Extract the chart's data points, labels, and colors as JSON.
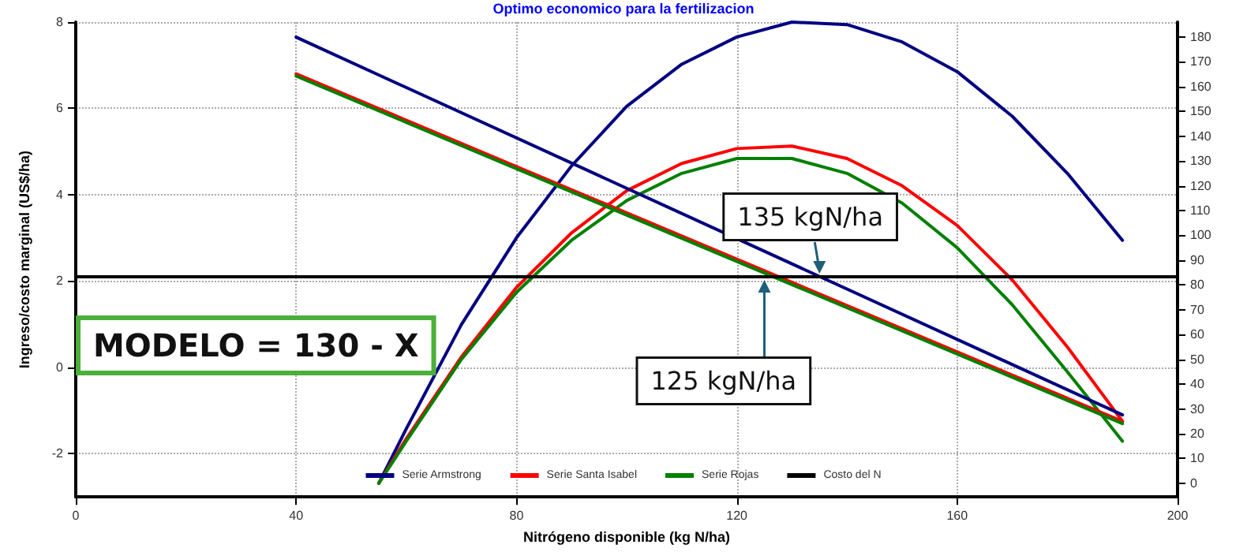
{
  "chart_data": {
    "type": "line",
    "title": "Optimo economico para la fertilizacion",
    "xlabel": "Nitrógeno disponible (kg N/ha)",
    "ylabel": "Ingreso/costo marginal (US$/ha)",
    "xlim": [
      0,
      200
    ],
    "xticks": [
      0,
      40,
      80,
      120,
      160,
      200
    ],
    "ylim": [
      -3,
      8
    ],
    "yticks": [
      -2,
      0,
      2,
      4,
      6,
      8
    ],
    "y2lim": [
      -5.5,
      186
    ],
    "y2ticks": [
      0,
      10,
      20,
      30,
      40,
      50,
      60,
      70,
      80,
      90,
      100,
      110,
      120,
      130,
      140,
      150,
      160,
      170,
      180
    ],
    "grid": true,
    "legend": "bottom",
    "marker": "none",
    "line_style": "solid",
    "series": [
      {
        "name": "Serie Armstrong",
        "color": "#000080",
        "axis": "y2",
        "x": [
          55,
          60,
          70,
          80,
          90,
          100,
          110,
          120,
          130,
          140,
          150,
          160,
          170,
          180,
          190
        ],
        "values": [
          0,
          22,
          64,
          99,
          128,
          152,
          169,
          180,
          186,
          185,
          178,
          166,
          148,
          125,
          98
        ]
      },
      {
        "name": "Serie Santa Isabel",
        "color": "#ff0000",
        "axis": "y2",
        "x": [
          55,
          60,
          70,
          80,
          90,
          100,
          110,
          120,
          130,
          140,
          150,
          160,
          170,
          180,
          190
        ],
        "values": [
          0,
          18,
          51,
          79,
          101,
          118,
          129,
          135,
          136,
          131,
          120,
          104,
          82,
          55,
          25
        ]
      },
      {
        "name": "Serie Rojas",
        "color": "#008000",
        "axis": "y2",
        "x": [
          55,
          60,
          70,
          80,
          90,
          100,
          110,
          120,
          130,
          140,
          150,
          160,
          170,
          180,
          190
        ],
        "values": [
          0,
          17,
          50,
          77,
          98,
          114,
          125,
          131,
          131,
          125,
          113,
          95,
          72,
          45,
          17
        ]
      },
      {
        "color": "#000080",
        "axis": "y",
        "x": [
          40,
          190
        ],
        "values": [
          7.65,
          -1.1
        ]
      },
      {
        "color": "#ff0000",
        "axis": "y",
        "x": [
          40,
          190
        ],
        "values": [
          6.8,
          -1.25
        ]
      },
      {
        "color": "#008000",
        "axis": "y",
        "x": [
          40,
          190
        ],
        "values": [
          6.75,
          -1.3
        ]
      },
      {
        "name": "Costo del N",
        "color": "#000000",
        "axis": "y",
        "x": [
          0,
          200
        ],
        "values": [
          2.1,
          2.1
        ]
      }
    ],
    "annotations": [
      "MODELO = 130 - X",
      {
        "text": "135 kgN/ha",
        "x": 135,
        "y": 2.1
      },
      {
        "text": "125 kgN/ha",
        "x": 125,
        "y": 2.1
      }
    ]
  }
}
